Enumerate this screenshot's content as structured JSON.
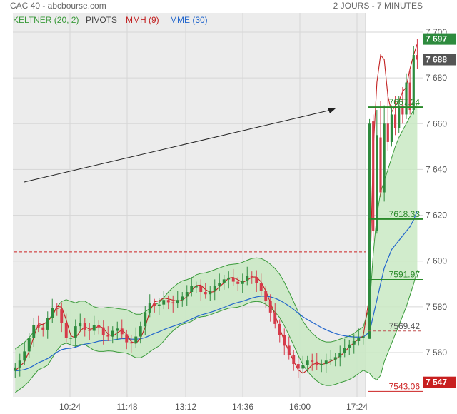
{
  "header": {
    "title": "CAC 40 - abcbourse.com",
    "period": "2 JOURS - 7 MINUTES"
  },
  "legend": {
    "keltner": "KELTNER (20, 2)",
    "pivots": "PIVOTS",
    "mmh": "MMH (9)",
    "mme": "MME (30)"
  },
  "colors": {
    "up": "#2e8b3e",
    "down": "#d63a4a",
    "keltner_line": "#3a9a3a",
    "keltner_fill": "#c9e9c3",
    "mmh": "#c22222",
    "mme": "#2266cc",
    "pivot_green": "#2a8a2a",
    "pivot_red": "#cc2222",
    "last_price_bg": "#555555",
    "high_bg": "#2e8b3e",
    "low_bg": "#c82020",
    "session_bg": "#ececec"
  },
  "chart_data": {
    "type": "candlestick",
    "x_ticks": [
      "10:24",
      "11:48",
      "13:12",
      "14:36",
      "16:00",
      "17:24"
    ],
    "y_ticks": [
      7560,
      7580,
      7600,
      7620,
      7640,
      7660,
      7680,
      7700
    ],
    "y_tick_labels": [
      "7 560",
      "7 580",
      "7 600",
      "7 620",
      "7 640",
      "7 660",
      "7 680",
      "7 700"
    ],
    "ylim": [
      7542,
      7704
    ],
    "grid": true,
    "previous_close": 7604,
    "last_price": 7688,
    "last_price_label": "7 688",
    "day_high": 7697,
    "day_high_label": "7 697",
    "day_low": 7547,
    "day_low_label": "7 547",
    "pivots": [
      {
        "label": "7667.24",
        "value": 7667.24,
        "color": "green",
        "style": "solid"
      },
      {
        "label": "7618.33",
        "value": 7618.33,
        "color": "green",
        "style": "solid"
      },
      {
        "label": "7591.97",
        "value": 7591.97,
        "color": "green",
        "style": "thin"
      },
      {
        "label": "7569.42",
        "value": 7569.42,
        "color": "gray",
        "style": "thin"
      },
      {
        "label": "7543.06",
        "value": 7543.06,
        "color": "red",
        "style": "thin"
      }
    ],
    "mid_price": [
      7552,
      7555,
      7558,
      7563,
      7570,
      7574,
      7568,
      7572,
      7578,
      7581,
      7577,
      7569,
      7564,
      7569,
      7574,
      7572,
      7568,
      7571,
      7573,
      7569,
      7566,
      7568,
      7571,
      7570,
      7566,
      7563,
      7565,
      7569,
      7574,
      7581,
      7582,
      7579,
      7583,
      7583,
      7581,
      7582,
      7584,
      7585,
      7588,
      7590,
      7588,
      7585,
      7586,
      7588,
      7590,
      7591,
      7593,
      7592,
      7590,
      7590,
      7593,
      7594,
      7592,
      7589,
      7585,
      7580,
      7575,
      7570,
      7565,
      7561,
      7557,
      7553,
      7553,
      7556,
      7557,
      7555,
      7554,
      7556,
      7557,
      7557,
      7559,
      7561,
      7563,
      7564,
      7566,
      7567
    ],
    "day2": {
      "candles": [
        {
          "o": 7566,
          "c": 7660,
          "h": 7662,
          "l": 7566
        },
        {
          "o": 7661,
          "c": 7613,
          "h": 7664,
          "l": 7609
        },
        {
          "o": 7613,
          "c": 7655,
          "h": 7666,
          "l": 7612
        },
        {
          "o": 7654,
          "c": 7630,
          "h": 7670,
          "l": 7628
        },
        {
          "o": 7630,
          "c": 7660,
          "h": 7668,
          "l": 7626
        },
        {
          "o": 7660,
          "c": 7652,
          "h": 7674,
          "l": 7648
        },
        {
          "o": 7652,
          "c": 7664,
          "h": 7668,
          "l": 7650
        },
        {
          "o": 7664,
          "c": 7658,
          "h": 7672,
          "l": 7655
        },
        {
          "o": 7658,
          "c": 7668,
          "h": 7672,
          "l": 7656
        },
        {
          "o": 7668,
          "c": 7664,
          "h": 7676,
          "l": 7660
        },
        {
          "o": 7664,
          "c": 7678,
          "h": 7682,
          "l": 7662
        },
        {
          "o": 7678,
          "c": 7666,
          "h": 7684,
          "l": 7664
        },
        {
          "o": 7666,
          "c": 7690,
          "h": 7694,
          "l": 7664
        },
        {
          "o": 7690,
          "c": 7688,
          "h": 7697,
          "l": 7684
        }
      ],
      "mmh": [
        7585,
        7648,
        7678,
        7690,
        7688,
        7672,
        7665,
        7668,
        7670,
        7674,
        7676,
        7684,
        7690,
        7695
      ],
      "mme": [
        7569,
        7576,
        7583,
        7590,
        7597,
        7601,
        7605,
        7607,
        7609,
        7611,
        7613,
        7615,
        7618,
        7622
      ],
      "band_upper": [
        7580,
        7603,
        7620,
        7630,
        7635,
        7640,
        7645,
        7650,
        7654,
        7657,
        7660,
        7663,
        7666,
        7669
      ],
      "band_lower": [
        7551,
        7549,
        7548,
        7550,
        7556,
        7560,
        7564,
        7568,
        7572,
        7576,
        7580,
        7585,
        7590,
        7596
      ]
    }
  }
}
